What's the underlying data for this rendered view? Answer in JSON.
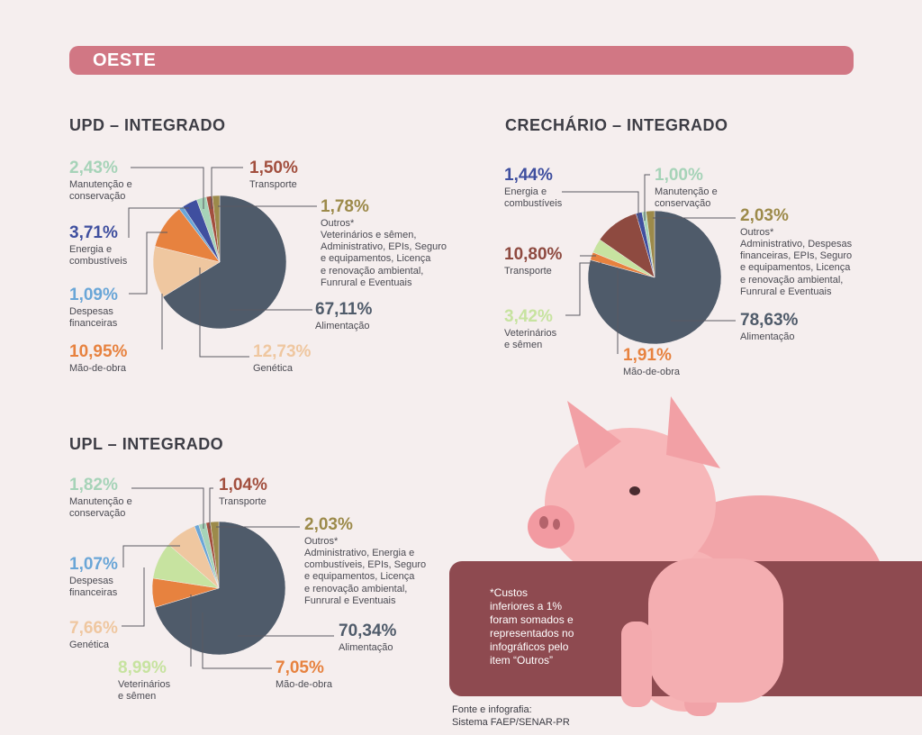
{
  "header": {
    "region": "OESTE"
  },
  "colors": {
    "banner": "#d17784",
    "text": "#3d3d45",
    "note_box": "#8e4a50"
  },
  "chart_data": [
    {
      "type": "pie",
      "title": "UPD – INTEGRADO",
      "slices": [
        {
          "label": "Alimentação",
          "percent_text": "67,11%",
          "value": 67.11,
          "color": "#4f5b6a"
        },
        {
          "label": "Genética",
          "percent_text": "12,73%",
          "value": 12.73,
          "color": "#efc7a0"
        },
        {
          "label": "Mão-de-obra",
          "percent_text": "10,95%",
          "value": 10.95,
          "color": "#e7823f"
        },
        {
          "label": "Despesas financeiras",
          "percent_text": "1,09%",
          "value": 1.09,
          "color": "#6aa6d7"
        },
        {
          "label": "Energia e combustíveis",
          "percent_text": "3,71%",
          "value": 3.71,
          "color": "#3f4f9f"
        },
        {
          "label": "Manutenção e conservação",
          "percent_text": "2,43%",
          "value": 2.43,
          "color": "#a6d3b8"
        },
        {
          "label": "Transporte",
          "percent_text": "1,50%",
          "value": 1.5,
          "color": "#a24f3e"
        },
        {
          "label": "Outros*",
          "percent_text": "1,78%",
          "value": 1.78,
          "color": "#9c8a4a",
          "detail": "Veterinários e sêmen, Administrativo, EPIs, Seguro e equipamentos, Licença e renovação ambiental, Funrural e Eventuais"
        }
      ]
    },
    {
      "type": "pie",
      "title": "CRECHÁRIO – INTEGRADO",
      "slices": [
        {
          "label": "Alimentação",
          "percent_text": "78,63%",
          "value": 78.63,
          "color": "#4f5b6a"
        },
        {
          "label": "Mão-de-obra",
          "percent_text": "1,91%",
          "value": 1.91,
          "color": "#e7823f"
        },
        {
          "label": "Veterinários e sêmen",
          "percent_text": "3,42%",
          "value": 3.42,
          "color": "#c7e3a0"
        },
        {
          "label": "Transporte",
          "percent_text": "10,80%",
          "value": 10.8,
          "color": "#8e4a40"
        },
        {
          "label": "Energia e combustíveis",
          "percent_text": "1,44%",
          "value": 1.44,
          "color": "#3f4f9f"
        },
        {
          "label": "Manutenção e conservação",
          "percent_text": "1,00%",
          "value": 1.0,
          "color": "#a6d3b8"
        },
        {
          "label": "Outros*",
          "percent_text": "2,03%",
          "value": 2.03,
          "color": "#9c8a4a",
          "detail": "Administrativo, Despesas financeiras, EPIs, Seguro e equipamentos, Licença e renovação ambiental, Funrural e Eventuais"
        }
      ]
    },
    {
      "type": "pie",
      "title": "UPL – INTEGRADO",
      "slices": [
        {
          "label": "Alimentação",
          "percent_text": "70,34%",
          "value": 70.34,
          "color": "#4f5b6a"
        },
        {
          "label": "Mão-de-obra",
          "percent_text": "7,05%",
          "value": 7.05,
          "color": "#e7823f"
        },
        {
          "label": "Veterinários e sêmen",
          "percent_text": "8,99%",
          "value": 8.99,
          "color": "#c7e3a0"
        },
        {
          "label": "Genética",
          "percent_text": "7,66%",
          "value": 7.66,
          "color": "#efc7a0"
        },
        {
          "label": "Despesas financeiras",
          "percent_text": "1,07%",
          "value": 1.07,
          "color": "#6aa6d7"
        },
        {
          "label": "Manutenção e conservação",
          "percent_text": "1,82%",
          "value": 1.82,
          "color": "#a6d3b8"
        },
        {
          "label": "Transporte",
          "percent_text": "1,04%",
          "value": 1.04,
          "color": "#a24f3e"
        },
        {
          "label": "Outros*",
          "percent_text": "2,03%",
          "value": 2.03,
          "color": "#9c8a4a",
          "detail": "Administrativo, Energia e combustíveis, EPIs, Seguro e equipamentos, Licença e renovação ambiental, Funrural e Eventuais"
        }
      ]
    }
  ],
  "labels": {
    "upd": {
      "manutencao": {
        "pct": "2,43%",
        "name": "Manutenção e\nconservação"
      },
      "energia": {
        "pct": "3,71%",
        "name": "Energia e\ncombustíveis"
      },
      "despesas": {
        "pct": "1,09%",
        "name": "Despesas\nfinanceiras"
      },
      "maodeobra": {
        "pct": "10,95%",
        "name": "Mão-de-obra"
      },
      "transporte": {
        "pct": "1,50%",
        "name": "Transporte"
      },
      "outros": {
        "pct": "1,78%",
        "name": "Outros*\nVeterinários e sêmen,\nAdministrativo, EPIs, Seguro\ne equipamentos, Licença\ne renovação ambiental,\nFunrural e Eventuais"
      },
      "alimentacao": {
        "pct": "67,11%",
        "name": "Alimentação"
      },
      "genetica": {
        "pct": "12,73%",
        "name": "Genética"
      }
    },
    "crech": {
      "energia": {
        "pct": "1,44%",
        "name": "Energia e\ncombustíveis"
      },
      "manutencao": {
        "pct": "1,00%",
        "name": "Manutenção e\nconservação"
      },
      "transporte": {
        "pct": "10,80%",
        "name": "Transporte"
      },
      "outros": {
        "pct": "2,03%",
        "name": "Outros*\nAdministrativo, Despesas\nfinanceiras, EPIs, Seguro\ne equipamentos, Licença\ne renovação ambiental,\nFunrural e Eventuais"
      },
      "veterinarios": {
        "pct": "3,42%",
        "name": "Veterinários\ne sêmen"
      },
      "alimentacao": {
        "pct": "78,63%",
        "name": "Alimentação"
      },
      "maodeobra": {
        "pct": "1,91%",
        "name": "Mão-de-obra"
      }
    },
    "upl": {
      "manutencao": {
        "pct": "1,82%",
        "name": "Manutenção e\nconservação"
      },
      "transporte": {
        "pct": "1,04%",
        "name": "Transporte"
      },
      "outros": {
        "pct": "2,03%",
        "name": "Outros*\nAdministrativo, Energia e\ncombustíveis, EPIs, Seguro\ne equipamentos, Licença\ne renovação ambiental,\nFunrural e Eventuais"
      },
      "despesas": {
        "pct": "1,07%",
        "name": "Despesas\nfinanceiras"
      },
      "genetica": {
        "pct": "7,66%",
        "name": "Genética"
      },
      "alimentacao": {
        "pct": "70,34%",
        "name": "Alimentação"
      },
      "veterinarios": {
        "pct": "8,99%",
        "name": "Veterinários\ne sêmen"
      },
      "maodeobra": {
        "pct": "7,05%",
        "name": "Mão-de-obra"
      }
    }
  },
  "note": "*Custos\ninferiores a 1%\nforam somados e\nrepresentados no\ninfográficos pelo\nitem “Outros”",
  "source": "Fonte e infografia:\nSistema FAEP/SENAR-PR"
}
